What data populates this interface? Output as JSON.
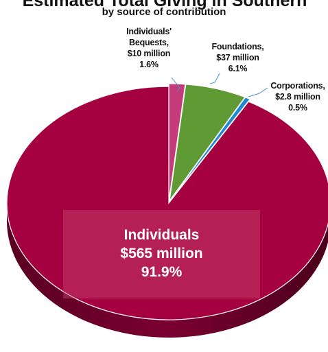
{
  "chart_data": {
    "type": "pie",
    "title": "Estimated Total Giving in Southern",
    "subtitle": "by source of contribution",
    "slices": [
      {
        "name": "Individuals",
        "amount": "$565 million",
        "percent": 91.9,
        "percent_label": "91.9%",
        "color": "#a5003f"
      },
      {
        "name": "Individuals' Bequests,",
        "amount": "$10 million",
        "percent": 1.6,
        "percent_label": "1.6%",
        "color": "#c43a7a"
      },
      {
        "name": "Foundations,",
        "amount": "$37 million",
        "percent": 6.1,
        "percent_label": "6.1%",
        "color": "#5f9a35"
      },
      {
        "name": "Corporations,",
        "amount": "$2.8 million",
        "percent": 0.5,
        "percent_label": "0.5%",
        "color": "#1e8ad4"
      }
    ]
  },
  "labels": {
    "bequests_line1": "Individuals'",
    "bequests_line2": "Bequests,"
  }
}
